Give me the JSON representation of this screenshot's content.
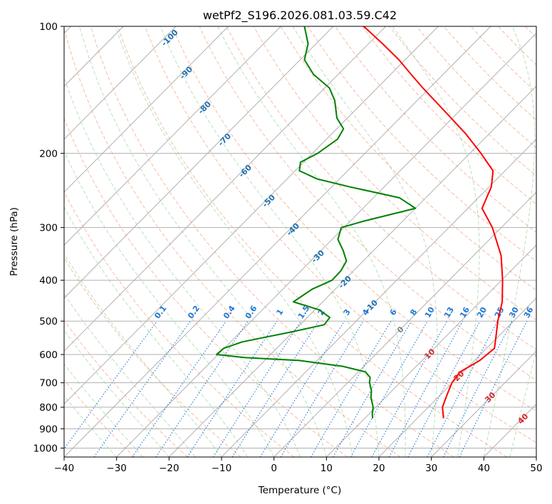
{
  "chart_data": {
    "type": "skew-t",
    "title": "wetPf2_S196.2026.081.03.59.C42",
    "xlabel": "Temperature (°C)",
    "ylabel": "Pressure (hPa)",
    "xlim": [
      -40,
      50
    ],
    "ylim": [
      1050,
      100
    ],
    "x_ticks": [
      "−40",
      "−30",
      "−20",
      "−10",
      "0",
      "10",
      "20",
      "30",
      "40",
      "50"
    ],
    "y_ticks": [
      "100",
      "200",
      "300",
      "400",
      "500",
      "600",
      "700",
      "800",
      "900",
      "1000"
    ],
    "y_tick_values": [
      100,
      200,
      300,
      400,
      500,
      600,
      700,
      800,
      900,
      1000
    ],
    "grid": true,
    "series": [
      {
        "color": "#ff0000",
        "points": [
          [
            850,
            25.0
          ],
          [
            800,
            22.7
          ],
          [
            750,
            21.3
          ],
          [
            700,
            19.9
          ],
          [
            660,
            19.4
          ],
          [
            620,
            21.0
          ],
          [
            580,
            21.5
          ],
          [
            550,
            19.9
          ],
          [
            500,
            17.0
          ],
          [
            450,
            14.2
          ],
          [
            400,
            10.2
          ],
          [
            350,
            5.3
          ],
          [
            300,
            -1.7
          ],
          [
            270,
            -7.3
          ],
          [
            240,
            -9.6
          ],
          [
            220,
            -12.3
          ],
          [
            200,
            -17.9
          ],
          [
            180,
            -24.4
          ],
          [
            160,
            -32.3
          ],
          [
            140,
            -41.3
          ],
          [
            130,
            -46.1
          ],
          [
            120,
            -51.2
          ],
          [
            110,
            -57.3
          ],
          [
            100,
            -64.2
          ]
        ]
      },
      {
        "color": "#008000",
        "points": [
          [
            850,
            11.5
          ],
          [
            830,
            10.6
          ],
          [
            800,
            9.5
          ],
          [
            760,
            7.3
          ],
          [
            730,
            6.0
          ],
          [
            700,
            4.2
          ],
          [
            680,
            3.3
          ],
          [
            660,
            1.4
          ],
          [
            640,
            -4.0
          ],
          [
            620,
            -13.4
          ],
          [
            610,
            -24.4
          ],
          [
            600,
            -30.3
          ],
          [
            580,
            -30.1
          ],
          [
            560,
            -27.8
          ],
          [
            530,
            -20.2
          ],
          [
            510,
            -15.4
          ],
          [
            490,
            -15.7
          ],
          [
            470,
            -19.2
          ],
          [
            450,
            -25.6
          ],
          [
            420,
            -24.4
          ],
          [
            400,
            -22.3
          ],
          [
            380,
            -22.4
          ],
          [
            360,
            -23.2
          ],
          [
            340,
            -25.8
          ],
          [
            320,
            -28.9
          ],
          [
            300,
            -30.5
          ],
          [
            290,
            -27.5
          ],
          [
            270,
            -20.0
          ],
          [
            255,
            -25.0
          ],
          [
            240,
            -36.7
          ],
          [
            230,
            -44.3
          ],
          [
            220,
            -49.2
          ],
          [
            210,
            -50.6
          ],
          [
            200,
            -49.0
          ],
          [
            185,
            -47.9
          ],
          [
            175,
            -48.7
          ],
          [
            165,
            -52.0
          ],
          [
            150,
            -55.7
          ],
          [
            140,
            -59.1
          ],
          [
            130,
            -64.7
          ],
          [
            120,
            -69.2
          ],
          [
            110,
            -71.5
          ],
          [
            100,
            -75.5
          ]
        ]
      }
    ],
    "dry_adiabat_labels": [
      "-100",
      "-90",
      "-80",
      "-70",
      "-60",
      "-50",
      "-40",
      "-30",
      "-20",
      "-10",
      "0",
      "10",
      "20",
      "30",
      "40"
    ],
    "mixing_ratio_labels": [
      "0.1",
      "0.2",
      "0.4",
      "0.6",
      "1",
      "1.5",
      "2",
      "3",
      "4",
      "6",
      "8",
      "10",
      "13",
      "16",
      "20",
      "25",
      "30",
      "36"
    ],
    "mixing_ratio_values": [
      0.1,
      0.2,
      0.4,
      0.6,
      1,
      1.5,
      2,
      3,
      4,
      6,
      8,
      10,
      13,
      16,
      20,
      25,
      30,
      36
    ],
    "colors": {
      "temperature": "#ff0000",
      "dewpoint": "#008000",
      "dry_adiabats": "#f4a582",
      "moist_adiabats": "#66bb66",
      "mixing_ratio": "#1f77d4",
      "dry_label": "#1f6fb0",
      "warm_label": "#d62728",
      "zero_label": "#808080",
      "grid": "#b0b0b0"
    }
  }
}
